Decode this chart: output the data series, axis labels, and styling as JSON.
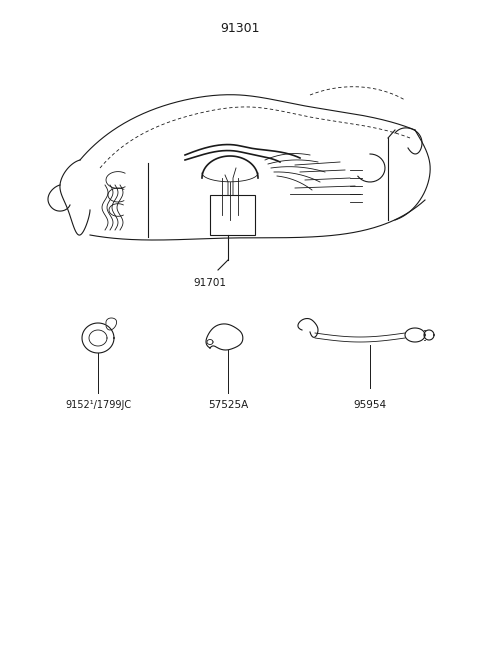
{
  "title": "91301",
  "bg_color": "#ffffff",
  "line_color": "#1a1a1a",
  "label_91701": "91701",
  "label_9152": "9152¹/1799JC",
  "label_57525A": "57525A",
  "label_95954": "95954",
  "font_size_title": 9,
  "font_size_labels": 7.5,
  "figw": 4.8,
  "figh": 6.57,
  "dpi": 100
}
